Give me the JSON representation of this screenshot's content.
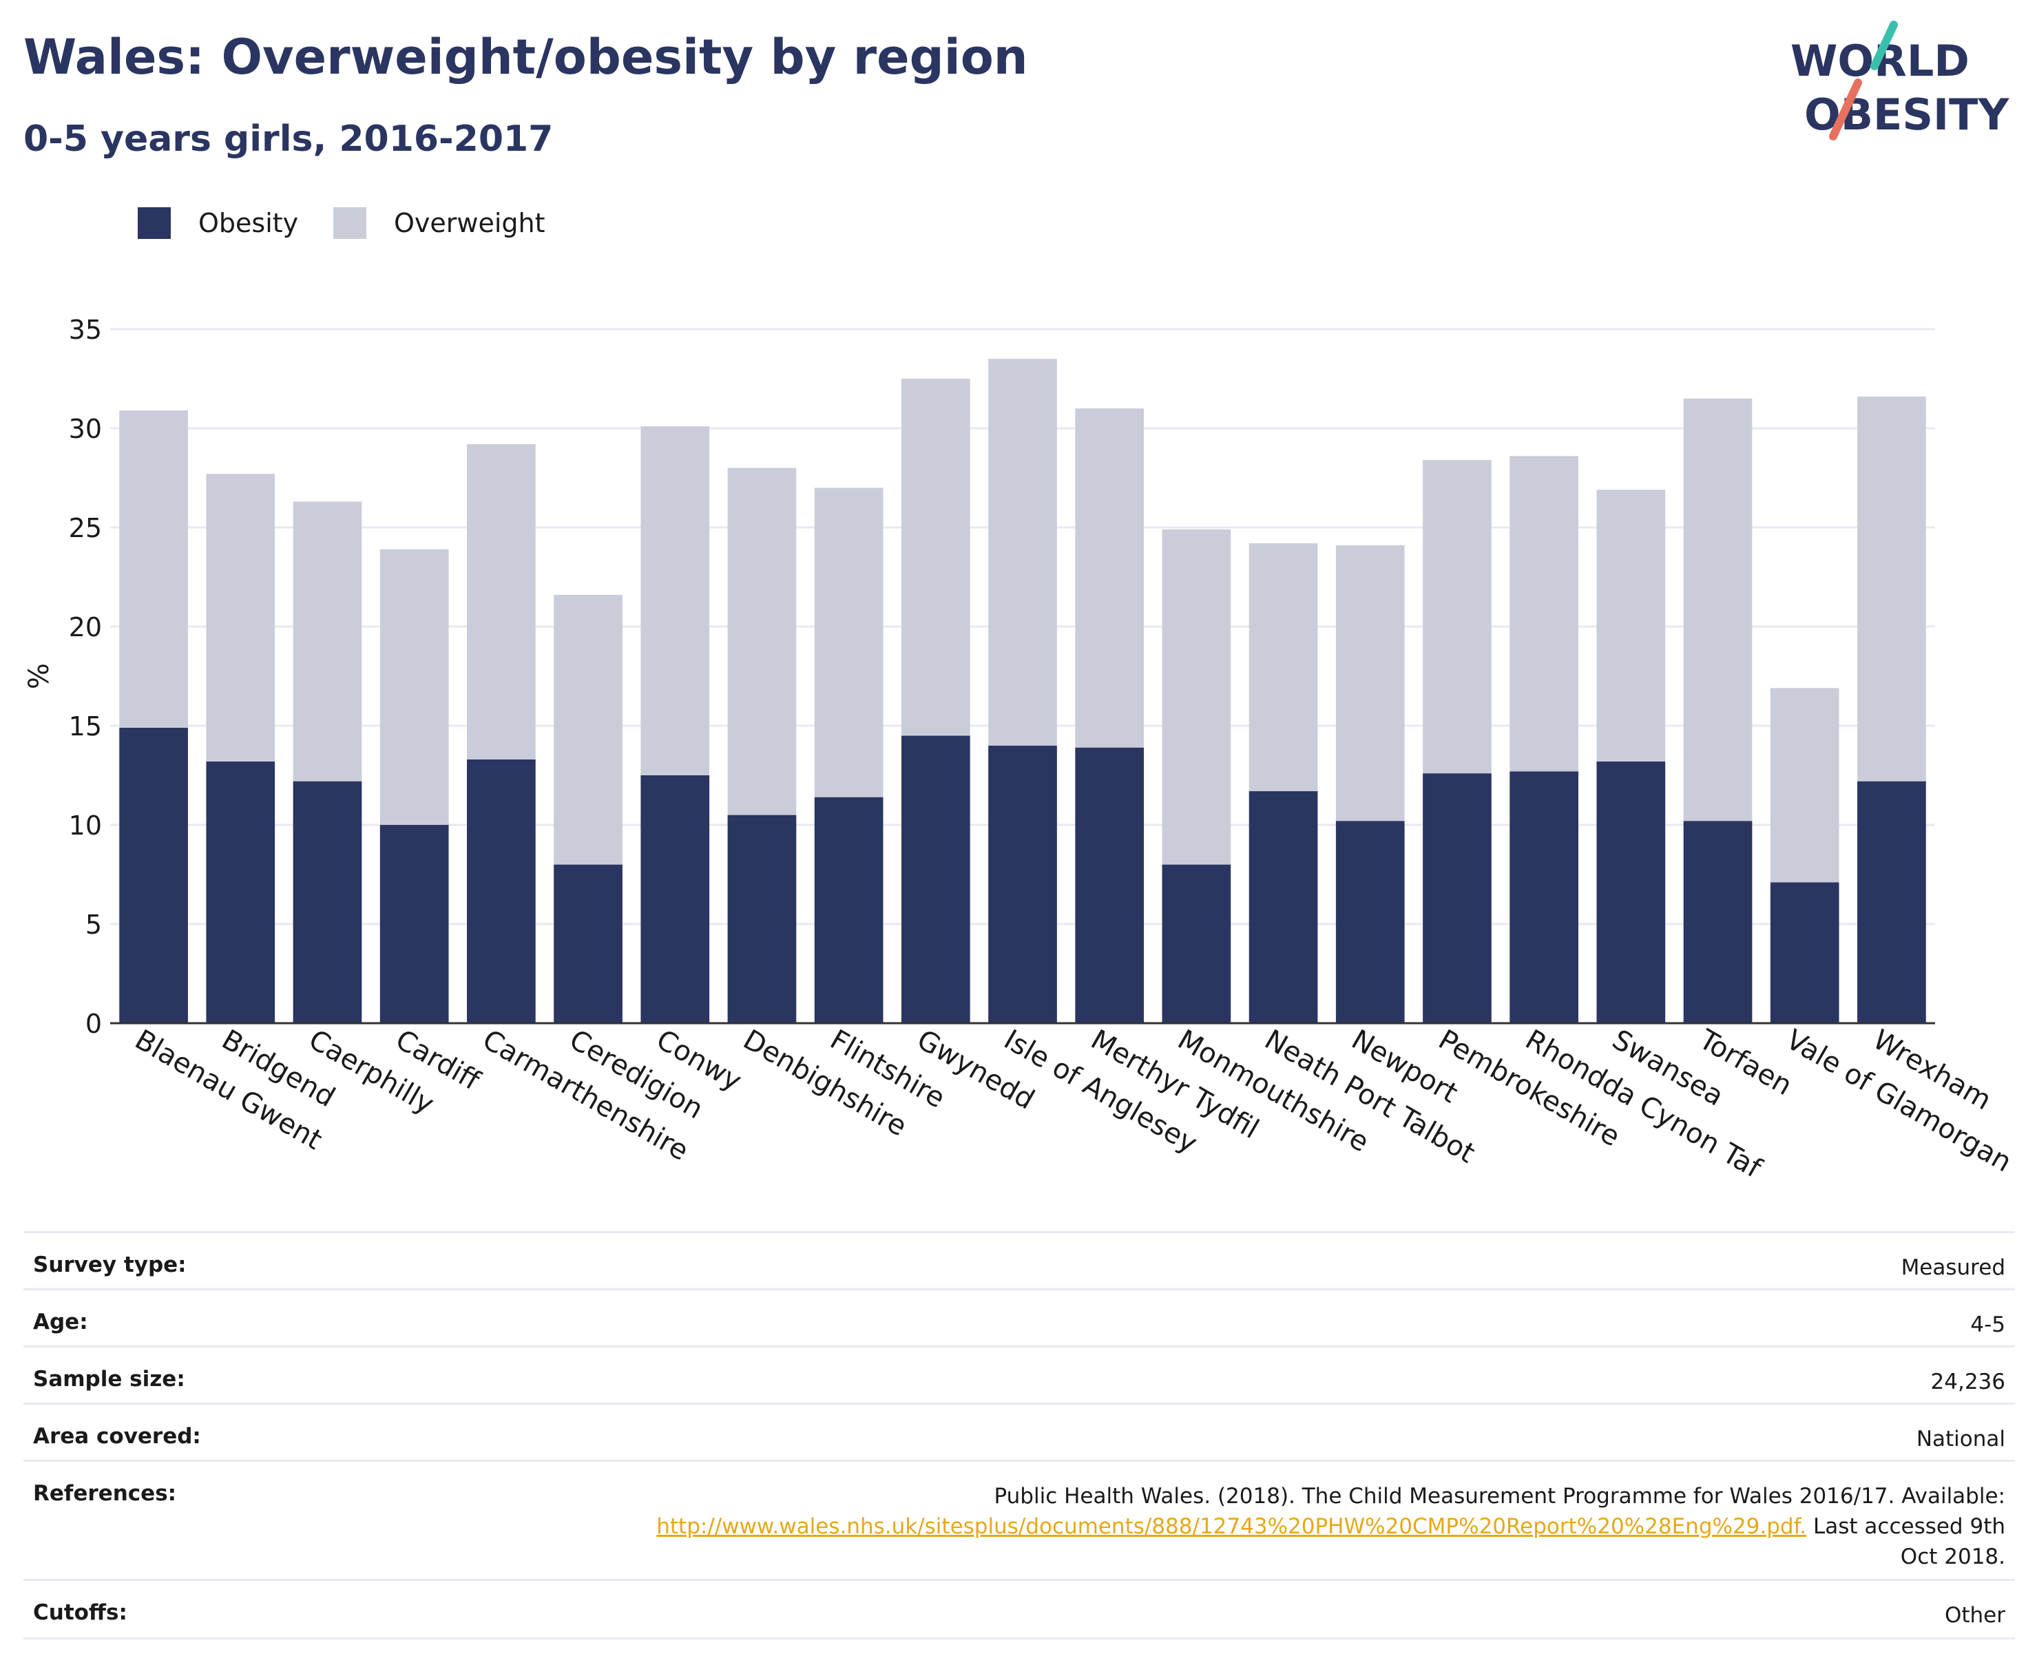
{
  "header": {
    "title": "Wales: Overweight/obesity by region",
    "subtitle": "0-5 years girls, 2016-2017"
  },
  "logo": {
    "line1": "WORLD",
    "line2": "OBESITY",
    "colors": {
      "navy": "#2a3561",
      "teal": "#3bbfad",
      "coral": "#e8705f"
    }
  },
  "chart_data": {
    "type": "bar",
    "stacked": true,
    "title": "",
    "xlabel": "",
    "ylabel": "%",
    "ylim": [
      0,
      35
    ],
    "yticks": [
      0,
      5,
      10,
      15,
      20,
      25,
      30,
      35
    ],
    "grid": true,
    "legend_position": "top-left",
    "categories": [
      "Blaenau Gwent",
      "Bridgend",
      "Caerphilly",
      "Cardiff",
      "Carmarthenshire",
      "Ceredigion",
      "Conwy",
      "Denbighshire",
      "Flintshire",
      "Gwynedd",
      "Isle of Anglesey",
      "Merthyr Tydfil",
      "Monmouthshire",
      "Neath Port Talbot",
      "Newport",
      "Pembrokeshire",
      "Rhondda Cynon Taf",
      "Swansea",
      "Torfaen",
      "Vale of Glamorgan",
      "Wrexham"
    ],
    "series": [
      {
        "name": "Obesity",
        "color": "#2a3561",
        "values": [
          14.9,
          13.2,
          12.2,
          10.0,
          13.3,
          8.0,
          12.5,
          10.5,
          11.4,
          14.5,
          14.0,
          13.9,
          8.0,
          11.7,
          10.2,
          12.6,
          12.7,
          13.2,
          10.2,
          7.1,
          12.2
        ]
      },
      {
        "name": "Overweight",
        "color": "#cacdd9",
        "values": [
          16.0,
          14.5,
          14.1,
          13.9,
          15.9,
          13.6,
          17.6,
          17.5,
          15.6,
          18.0,
          19.5,
          17.1,
          16.9,
          12.5,
          13.9,
          15.8,
          15.9,
          13.7,
          21.3,
          9.8,
          19.4
        ]
      }
    ]
  },
  "info": {
    "survey_type": {
      "label": "Survey type:",
      "value": "Measured"
    },
    "age": {
      "label": "Age:",
      "value": "4-5"
    },
    "sample_size": {
      "label": "Sample size:",
      "value": "24,236"
    },
    "area_covered": {
      "label": "Area covered:",
      "value": "National"
    },
    "references": {
      "label": "References:",
      "text_before": "Public Health Wales. (2018). The Child Measurement Programme for Wales 2016/17. Available:",
      "link": "http://www.wales.nhs.uk/sitesplus/documents/888/12743%20PHW%20CMP%20Report%20%28Eng%29.pdf.",
      "text_after": " Last accessed 9th Oct 2018."
    },
    "cutoffs": {
      "label": "Cutoffs:",
      "value": "Other"
    }
  }
}
